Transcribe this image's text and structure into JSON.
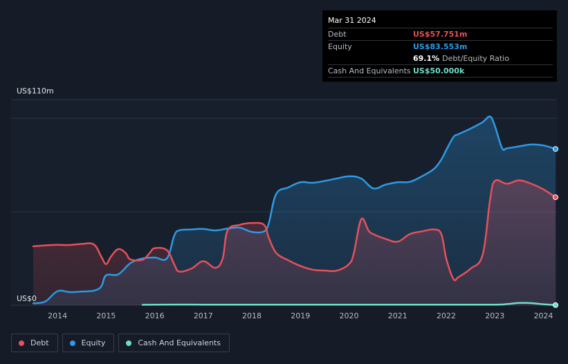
{
  "tooltip": {
    "date": "Mar 31 2024",
    "debt_label": "Debt",
    "debt_value": "US$57.751m",
    "equity_label": "Equity",
    "equity_value": "US$83.553m",
    "ratio_value": "69.1%",
    "ratio_label": "Debt/Equity Ratio",
    "cash_label": "Cash And Equivalents",
    "cash_value": "US$50.000k"
  },
  "colors": {
    "debt": "#e8505b",
    "equity": "#2c9be6",
    "cash": "#6fdcca",
    "background": "#151b27",
    "grid": "#2e3440"
  },
  "legend": [
    {
      "label": "Debt",
      "color": "#e8505b"
    },
    {
      "label": "Equity",
      "color": "#2c9be6"
    },
    {
      "label": "Cash And Equivalents",
      "color": "#6fdcca"
    }
  ],
  "chart_data": {
    "type": "area",
    "title": "",
    "ylabel": "",
    "y_max_label": "US$110m",
    "y_min_label": "US$0",
    "ylim": [
      0,
      110
    ],
    "xlim": [
      2013.5,
      2024.25
    ],
    "x_tick_labels": [
      "2014",
      "2015",
      "2016",
      "2017",
      "2018",
      "2019",
      "2020",
      "2021",
      "2022",
      "2023",
      "2024"
    ],
    "x_ticks": [
      2014,
      2015,
      2016,
      2017,
      2018,
      2019,
      2020,
      2021,
      2022,
      2023,
      2024
    ],
    "gridlines": [
      0,
      50,
      100,
      110
    ],
    "series": [
      {
        "name": "Debt",
        "points": [
          [
            2013.5,
            31.5
          ],
          [
            2013.75,
            32
          ],
          [
            2014.0,
            32.3
          ],
          [
            2014.25,
            32.2
          ],
          [
            2014.5,
            32.8
          ],
          [
            2014.75,
            32.5
          ],
          [
            2014.9,
            26
          ],
          [
            2015.0,
            22
          ],
          [
            2015.1,
            26
          ],
          [
            2015.25,
            30
          ],
          [
            2015.4,
            28
          ],
          [
            2015.5,
            24.5
          ],
          [
            2015.75,
            24.3
          ],
          [
            2015.9,
            28
          ],
          [
            2016.0,
            30.5
          ],
          [
            2016.25,
            29.5
          ],
          [
            2016.4,
            22
          ],
          [
            2016.5,
            18
          ],
          [
            2016.75,
            19.5
          ],
          [
            2017.0,
            23.5
          ],
          [
            2017.25,
            20
          ],
          [
            2017.4,
            25
          ],
          [
            2017.5,
            40
          ],
          [
            2017.75,
            43
          ],
          [
            2018.0,
            44
          ],
          [
            2018.25,
            43
          ],
          [
            2018.35,
            36
          ],
          [
            2018.5,
            28
          ],
          [
            2018.75,
            24
          ],
          [
            2019.0,
            21
          ],
          [
            2019.25,
            19
          ],
          [
            2019.5,
            18.5
          ],
          [
            2019.75,
            18.5
          ],
          [
            2020.0,
            22
          ],
          [
            2020.1,
            28
          ],
          [
            2020.25,
            46
          ],
          [
            2020.4,
            40
          ],
          [
            2020.5,
            38
          ],
          [
            2020.75,
            35.5
          ],
          [
            2021.0,
            34
          ],
          [
            2021.25,
            38
          ],
          [
            2021.5,
            39.5
          ],
          [
            2021.75,
            40.5
          ],
          [
            2021.9,
            38
          ],
          [
            2022.0,
            25
          ],
          [
            2022.15,
            14
          ],
          [
            2022.25,
            15
          ],
          [
            2022.5,
            19.5
          ],
          [
            2022.75,
            27
          ],
          [
            2022.9,
            56
          ],
          [
            2023.0,
            66.5
          ],
          [
            2023.25,
            65
          ],
          [
            2023.5,
            66.8
          ],
          [
            2023.75,
            65
          ],
          [
            2024.0,
            62
          ],
          [
            2024.25,
            57.8
          ]
        ]
      },
      {
        "name": "Equity",
        "points": [
          [
            2013.5,
            1
          ],
          [
            2013.75,
            2
          ],
          [
            2014.0,
            7.5
          ],
          [
            2014.25,
            7
          ],
          [
            2014.5,
            7.3
          ],
          [
            2014.75,
            7.8
          ],
          [
            2014.9,
            10
          ],
          [
            2015.0,
            16
          ],
          [
            2015.25,
            16.5
          ],
          [
            2015.5,
            22.5
          ],
          [
            2015.75,
            25
          ],
          [
            2016.0,
            25.5
          ],
          [
            2016.25,
            25
          ],
          [
            2016.4,
            37
          ],
          [
            2016.5,
            40
          ],
          [
            2016.75,
            40.5
          ],
          [
            2017.0,
            40.8
          ],
          [
            2017.25,
            40
          ],
          [
            2017.5,
            41
          ],
          [
            2017.75,
            41.5
          ],
          [
            2018.0,
            39.2
          ],
          [
            2018.25,
            39.5
          ],
          [
            2018.35,
            44
          ],
          [
            2018.5,
            59.5
          ],
          [
            2018.75,
            63
          ],
          [
            2019.0,
            65.8
          ],
          [
            2019.25,
            65.5
          ],
          [
            2019.5,
            66.5
          ],
          [
            2019.75,
            67.8
          ],
          [
            2020.0,
            69
          ],
          [
            2020.25,
            67.8
          ],
          [
            2020.5,
            62.5
          ],
          [
            2020.75,
            64.5
          ],
          [
            2021.0,
            65.8
          ],
          [
            2021.25,
            66
          ],
          [
            2021.5,
            69
          ],
          [
            2021.75,
            73
          ],
          [
            2021.9,
            78
          ],
          [
            2022.0,
            83
          ],
          [
            2022.15,
            90
          ],
          [
            2022.25,
            91.5
          ],
          [
            2022.5,
            94.5
          ],
          [
            2022.75,
            98
          ],
          [
            2022.9,
            101
          ],
          [
            2023.0,
            96
          ],
          [
            2023.15,
            84
          ],
          [
            2023.25,
            84
          ],
          [
            2023.5,
            85
          ],
          [
            2023.75,
            86
          ],
          [
            2024.0,
            85.5
          ],
          [
            2024.25,
            83.6
          ]
        ]
      },
      {
        "name": "Cash And Equivalents",
        "points": [
          [
            2015.75,
            0.2
          ],
          [
            2016.0,
            0.3
          ],
          [
            2017.0,
            0.3
          ],
          [
            2018.0,
            0.3
          ],
          [
            2019.0,
            0.3
          ],
          [
            2020.0,
            0.3
          ],
          [
            2021.0,
            0.3
          ],
          [
            2022.0,
            0.3
          ],
          [
            2023.0,
            0.3
          ],
          [
            2023.25,
            0.6
          ],
          [
            2023.5,
            1.2
          ],
          [
            2023.75,
            1.1
          ],
          [
            2024.0,
            0.5
          ],
          [
            2024.25,
            0.05
          ]
        ]
      }
    ]
  }
}
